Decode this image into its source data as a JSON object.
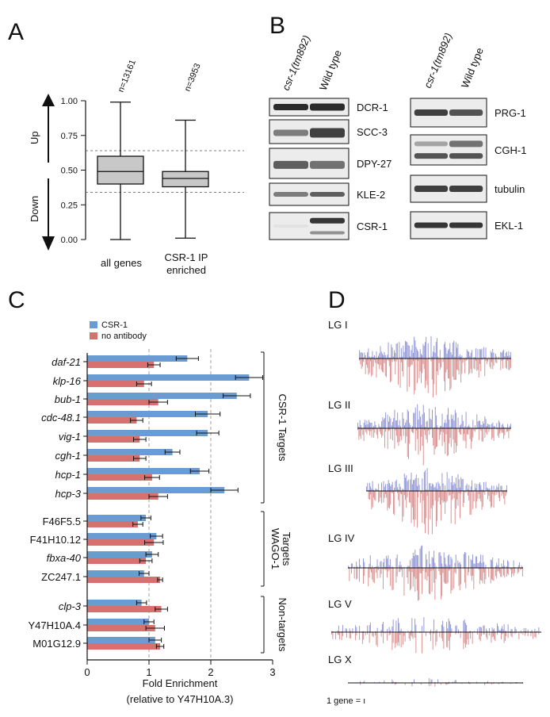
{
  "panels": {
    "a": "A",
    "b": "B",
    "c": "C",
    "d": "D"
  },
  "panel_a": {
    "up_label": "Up",
    "down_label": "Down",
    "yticks": [
      "1.00",
      "0.75",
      "0.50",
      "0.25",
      "0.00"
    ],
    "groups": [
      {
        "n": "n=13161",
        "label_lines": [
          "all genes"
        ]
      },
      {
        "n": "n=3953",
        "label_lines": [
          "CSR-1 IP",
          "enriched"
        ]
      }
    ]
  },
  "chart_data": [
    {
      "type": "box",
      "title": "",
      "categories": [
        "all genes",
        "CSR-1 IP enriched"
      ],
      "counts": [
        "n=13161",
        "n=3953"
      ],
      "ylim": [
        0,
        1
      ],
      "boxes": [
        {
          "min": 0.0,
          "q1": 0.4,
          "median": 0.49,
          "q3": 0.6,
          "max": 0.99
        },
        {
          "min": 0.01,
          "q1": 0.38,
          "median": 0.44,
          "q3": 0.49,
          "max": 0.86
        }
      ],
      "reference_lines": [
        0.34,
        0.64
      ]
    },
    {
      "type": "bar",
      "orientation": "horizontal",
      "xlabel": "Fold Enrichment",
      "xlabel_sub": "(relative to Y47H10A.3)",
      "xlim": [
        0,
        3
      ],
      "xticks": [
        "0",
        "1",
        "2",
        "3"
      ],
      "legend": [
        "CSR-1",
        "no antibody"
      ],
      "colors": {
        "csr1": "#6a9bd3",
        "noab": "#d87070"
      },
      "groups": [
        {
          "label": "CSR-1 Targets",
          "genes": [
            {
              "name": "daf-21",
              "italic": true,
              "csr1": 1.62,
              "csr1_err": 0.18,
              "noab": 1.08,
              "noab_err": 0.1
            },
            {
              "name": "klp-16",
              "italic": true,
              "csr1": 2.62,
              "csr1_err": 0.22,
              "noab": 0.92,
              "noab_err": 0.12
            },
            {
              "name": "bub-1",
              "italic": true,
              "csr1": 2.42,
              "csr1_err": 0.22,
              "noab": 1.15,
              "noab_err": 0.15
            },
            {
              "name": "cdc-48.1",
              "italic": true,
              "csr1": 1.95,
              "csr1_err": 0.2,
              "noab": 0.8,
              "noab_err": 0.1
            },
            {
              "name": "vig-1",
              "italic": true,
              "csr1": 1.95,
              "csr1_err": 0.18,
              "noab": 0.85,
              "noab_err": 0.1
            },
            {
              "name": "cgh-1",
              "italic": true,
              "csr1": 1.38,
              "csr1_err": 0.12,
              "noab": 0.85,
              "noab_err": 0.1
            },
            {
              "name": "hcp-1",
              "italic": true,
              "csr1": 1.82,
              "csr1_err": 0.15,
              "noab": 1.05,
              "noab_err": 0.12
            },
            {
              "name": "hcp-3",
              "italic": true,
              "csr1": 2.22,
              "csr1_err": 0.22,
              "noab": 1.15,
              "noab_err": 0.15
            }
          ]
        },
        {
          "label": "WAGO-1 Targets",
          "label_lines": [
            "WAGO-1",
            "Targets"
          ],
          "genes": [
            {
              "name": "F46F5.5",
              "italic": false,
              "csr1": 0.95,
              "csr1_err": 0.08,
              "noab": 0.82,
              "noab_err": 0.08
            },
            {
              "name": "F41H10.12",
              "italic": false,
              "csr1": 1.12,
              "csr1_err": 0.1,
              "noab": 1.08,
              "noab_err": 0.15
            },
            {
              "name": "fbxa-40",
              "italic": true,
              "csr1": 1.05,
              "csr1_err": 0.1,
              "noab": 0.95,
              "noab_err": 0.1
            },
            {
              "name": "ZC247.1",
              "italic": false,
              "csr1": 0.92,
              "csr1_err": 0.08,
              "noab": 1.18,
              "noab_err": 0.04
            }
          ]
        },
        {
          "label": "Non-targets",
          "genes": [
            {
              "name": "clp-3",
              "italic": true,
              "csr1": 0.88,
              "csr1_err": 0.08,
              "noab": 1.2,
              "noab_err": 0.1
            },
            {
              "name": "Y47H10A.4",
              "italic": false,
              "csr1": 1.0,
              "csr1_err": 0.08,
              "noab": 1.1,
              "noab_err": 0.15
            },
            {
              "name": "M01G12.9",
              "italic": false,
              "csr1": 1.1,
              "csr1_err": 0.1,
              "noab": 1.18,
              "noab_err": 0.06
            }
          ]
        }
      ]
    }
  ],
  "panel_b": {
    "lane_labels": [
      "csr-1(tm892)",
      "Wild type"
    ],
    "left_blots": [
      "DCR-1",
      "SCC-3",
      "DPY-27",
      "KLE-2",
      "CSR-1"
    ],
    "right_blots": [
      "PRG-1",
      "CGH-1",
      "tubulin",
      "EKL-1"
    ]
  },
  "panel_d": {
    "tracks": [
      "LG I",
      "LG II",
      "LG III",
      "LG IV",
      "LG V",
      "LG X"
    ],
    "scale_label": "1 gene = ı",
    "colors": {
      "up": "#8a8fd6",
      "down": "#d88787"
    }
  }
}
